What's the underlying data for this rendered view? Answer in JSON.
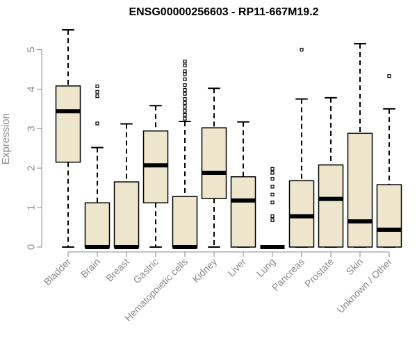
{
  "chart_data": {
    "type": "boxplot",
    "title": "ENSG00000256603 - RP11-667M19.2",
    "xlabel": "",
    "ylabel": "Expression",
    "ylim": [
      0,
      5.5
    ],
    "yticks": [
      0,
      1,
      2,
      3,
      4,
      5
    ],
    "box_color": "#ede6cc",
    "axis_color": "#8a8a8a",
    "categories": [
      "Bladder",
      "Brain",
      "Breast",
      "Gastric",
      "Hematopoietic cells",
      "Kidney",
      "Liver",
      "Lung",
      "Pancreas",
      "Prostate",
      "Skin",
      "Unknown / Other"
    ],
    "boxes": [
      {
        "name": "Bladder",
        "min": 0,
        "q1": 2.15,
        "median": 3.44,
        "q3": 4.08,
        "max": 5.5,
        "outliers": []
      },
      {
        "name": "Brain",
        "min": 0,
        "q1": 0,
        "median": 0,
        "q3": 1.12,
        "max": 2.52,
        "outliers": [
          3.13,
          3.82,
          3.93,
          4.07
        ]
      },
      {
        "name": "Breast",
        "min": 0,
        "q1": 0,
        "median": 0,
        "q3": 1.65,
        "max": 3.12,
        "outliers": []
      },
      {
        "name": "Gastric",
        "min": 0,
        "q1": 1.12,
        "median": 2.07,
        "q3": 2.94,
        "max": 3.58,
        "outliers": []
      },
      {
        "name": "Hematopoietic cells",
        "min": 0,
        "q1": 0,
        "median": 0,
        "q3": 1.28,
        "max": 3.18,
        "outliers": [
          3.25,
          3.35,
          3.45,
          3.55,
          3.65,
          3.75,
          3.88,
          3.98,
          4.1,
          4.25,
          4.38,
          4.45,
          4.6,
          4.7
        ]
      },
      {
        "name": "Kidney",
        "min": 0,
        "q1": 1.23,
        "median": 1.88,
        "q3": 3.02,
        "max": 4.02,
        "outliers": []
      },
      {
        "name": "Liver",
        "min": 0,
        "q1": 0,
        "median": 1.18,
        "q3": 1.78,
        "max": 3.17,
        "outliers": []
      },
      {
        "name": "Lung",
        "min": 0,
        "q1": 0,
        "median": 0,
        "q3": 0,
        "max": 0,
        "outliers": [
          0.68,
          0.78,
          1.13,
          1.33,
          1.53,
          1.73,
          1.88,
          1.98
        ]
      },
      {
        "name": "Pancreas",
        "min": 0,
        "q1": 0,
        "median": 0.78,
        "q3": 1.68,
        "max": 3.75,
        "outliers": [
          5.0
        ]
      },
      {
        "name": "Prostate",
        "min": 0,
        "q1": 0,
        "median": 1.22,
        "q3": 2.08,
        "max": 3.78,
        "outliers": []
      },
      {
        "name": "Skin",
        "min": 0,
        "q1": 0,
        "median": 0.65,
        "q3": 2.88,
        "max": 5.15,
        "outliers": []
      },
      {
        "name": "Unknown / Other",
        "min": 0,
        "q1": 0,
        "median": 0.44,
        "q3": 1.58,
        "max": 3.5,
        "outliers": [
          4.33
        ]
      }
    ]
  }
}
